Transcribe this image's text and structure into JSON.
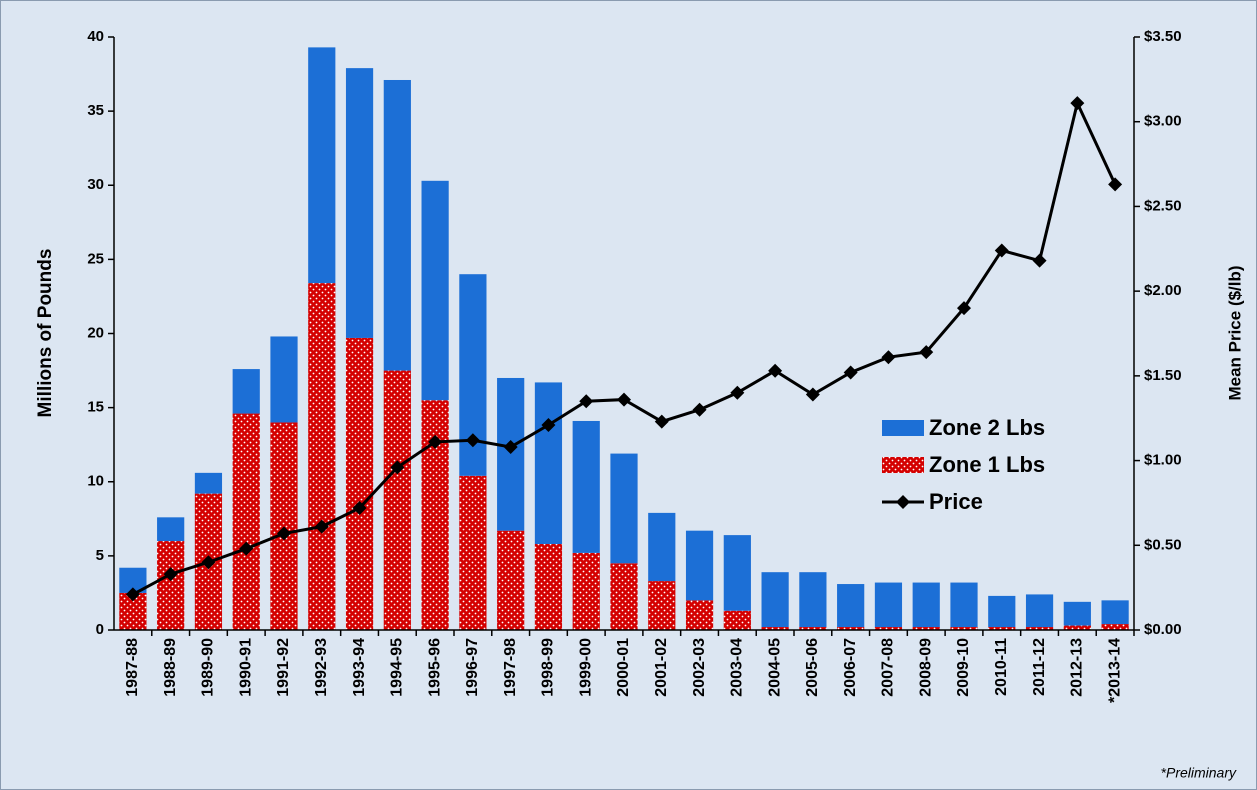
{
  "chart_data": {
    "type": "bar",
    "stacked": true,
    "categories": [
      "1987-88",
      "1988-89",
      "1989-90",
      "1990-91",
      "1991-92",
      "1992-93",
      "1993-94",
      "1994-95",
      "1995-96",
      "1996-97",
      "1997-98",
      "1998-99",
      "1999-00",
      "2000-01",
      "2001-02",
      "2002-03",
      "2003-04",
      "2004-05",
      "2005-06",
      "2006-07",
      "2007-08",
      "2008-09",
      "2009-10",
      "2010-11",
      "2011-12",
      "2012-13",
      "*2013-14"
    ],
    "series": [
      {
        "name": "Zone 1 Lbs",
        "color": "#d40000",
        "pattern": "dots",
        "values": [
          2.5,
          6.0,
          9.2,
          14.6,
          14.0,
          23.4,
          19.7,
          17.5,
          15.5,
          10.4,
          6.7,
          5.8,
          5.2,
          4.5,
          3.3,
          2.0,
          1.3,
          0.2,
          0.2,
          0.2,
          0.2,
          0.2,
          0.2,
          0.2,
          0.2,
          0.3,
          0.4
        ]
      },
      {
        "name": "Zone 2 Lbs",
        "color": "#1c6fd6",
        "values": [
          1.7,
          1.6,
          1.4,
          3.0,
          5.8,
          15.9,
          18.2,
          19.6,
          14.8,
          13.6,
          10.3,
          10.9,
          8.9,
          7.4,
          4.6,
          4.7,
          5.1,
          3.7,
          3.7,
          2.9,
          3.0,
          3.0,
          3.0,
          2.1,
          2.2,
          1.6,
          1.6
        ]
      },
      {
        "name": "Price",
        "type": "line",
        "axis": "y2",
        "color": "#000000",
        "values": [
          0.21,
          0.33,
          0.4,
          0.48,
          0.57,
          0.61,
          0.72,
          0.96,
          1.11,
          1.12,
          1.08,
          1.21,
          1.35,
          1.36,
          1.23,
          1.3,
          1.4,
          1.53,
          1.39,
          1.52,
          1.61,
          1.64,
          1.9,
          2.24,
          2.18,
          3.11,
          2.63
        ]
      }
    ],
    "legend_order": [
      1,
      0,
      2
    ],
    "y_label": "Millions of Pounds",
    "y2_label": "Mean Price ($/lb)",
    "ylim": [
      0,
      40
    ],
    "yticks": [
      0,
      5,
      10,
      15,
      20,
      25,
      30,
      35,
      40
    ],
    "y2lim": [
      0,
      3.5
    ],
    "y2ticks": [
      {
        "value": 0,
        "label": "$0.00"
      },
      {
        "value": 0.5,
        "label": "$0.50"
      },
      {
        "value": 1,
        "label": "$1.00"
      },
      {
        "value": 1.5,
        "label": "$1.50"
      },
      {
        "value": 2,
        "label": "$2.00"
      },
      {
        "value": 2.5,
        "label": "$2.50"
      },
      {
        "value": 3,
        "label": "$3.00"
      },
      {
        "value": 3.5,
        "label": "$3.50"
      }
    ],
    "footnote": "*Preliminary",
    "grid": false,
    "background": "#dce6f2"
  }
}
